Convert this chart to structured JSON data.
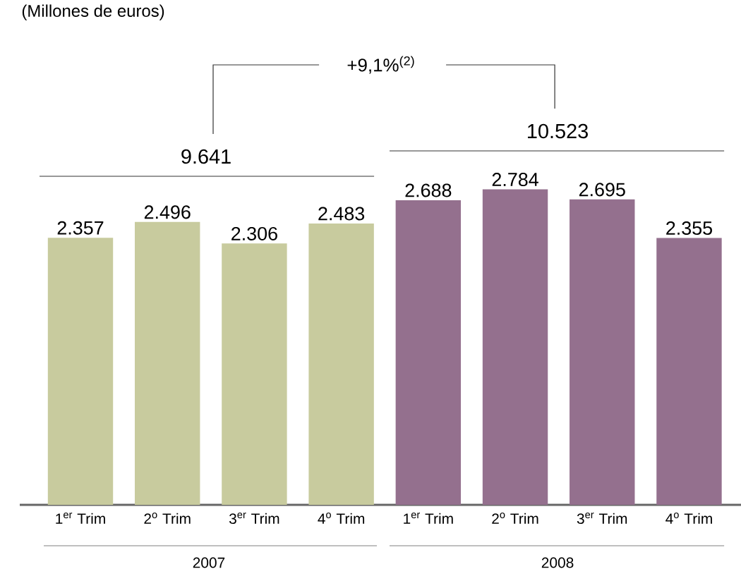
{
  "chart_data": {
    "type": "bar",
    "title": "(Millones de euros)",
    "categories": [
      "1$^{er}$ Trim",
      "2$^{o}$ Trim",
      "3$^{er}$ Trim",
      "4$^{o}$ Trim",
      "1$^{er}$ Trim",
      "2$^{o}$ Trim",
      "3$^{er}$ Trim",
      "4$^{o}$ Trim"
    ],
    "values": [
      2357,
      2496,
      2306,
      2483,
      2688,
      2784,
      2695,
      2355
    ],
    "value_labels": [
      "2.357",
      "2.496",
      "2.306",
      "2.483",
      "2.688",
      "2.784",
      "2.695",
      "2.355"
    ],
    "colors": [
      "#c8cb9e",
      "#c8cb9e",
      "#c8cb9e",
      "#c8cb9e",
      "#94708e",
      "#94708e",
      "#94708e",
      "#94708e"
    ],
    "annotations": [
      "9.641",
      "10.523",
      "+9,1%$^{(2)}$",
      "2007",
      "2008"
    ]
  }
}
